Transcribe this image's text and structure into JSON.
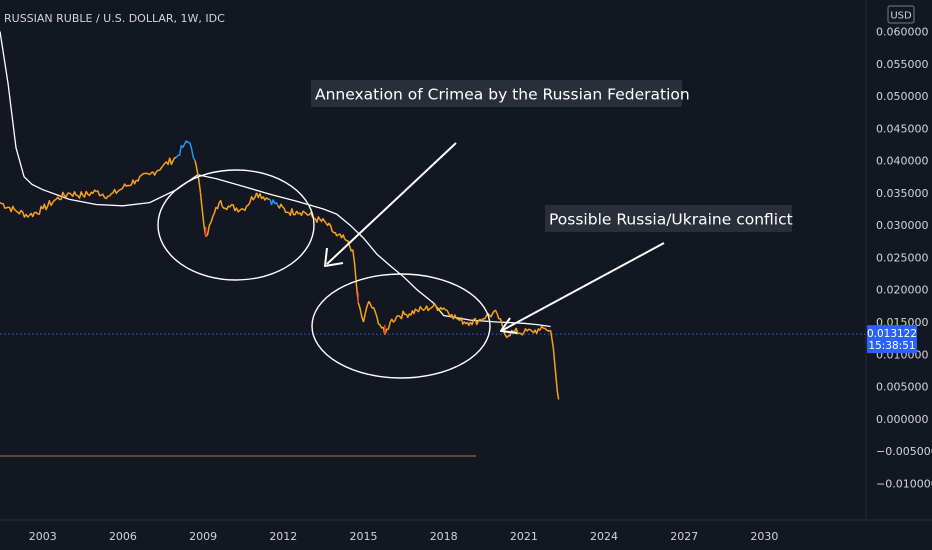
{
  "header": {
    "title": "RUSSIAN RUBLE / U.S. DOLLAR, 1W, IDC",
    "currency": "USD"
  },
  "price_badge": {
    "price": "0.013122",
    "countdown": "15:38:51"
  },
  "annotations": [
    "Annexation of Crimea by the Russian Federation",
    "Possible Russia/Ukraine conflict"
  ],
  "colors": {
    "background": "#131722",
    "up": "#f7a21b",
    "peak": "#2196f3",
    "down": "#e53935",
    "moving_average": "#ffffff",
    "last_price": "#2962ff"
  },
  "chart_data": {
    "type": "line",
    "title": "RUSSIAN RUBLE / U.S. DOLLAR, 1W, IDC",
    "xlabel": "",
    "ylabel": "",
    "xlim": [
      2001.4,
      2033.8
    ],
    "ylim": [
      -0.0118,
      0.0607
    ],
    "x_ticks": [
      "2003",
      "2006",
      "2009",
      "2012",
      "2015",
      "2018",
      "2021",
      "2024",
      "2027",
      "2030"
    ],
    "y_ticks": [
      "0.060000",
      "0.055000",
      "0.050000",
      "0.045000",
      "0.040000",
      "0.035000",
      "0.030000",
      "0.025000",
      "0.020000",
      "0.015000",
      "0.010000",
      "0.005000",
      "0.000000",
      "−0.005000",
      "−0.010000"
    ],
    "last_price": 0.013122,
    "grid": false,
    "series": [
      {
        "x": [
          2001.4,
          2002.0,
          2002.5,
          2003.0,
          2003.5,
          2004.0,
          2004.5,
          2005.0,
          2005.5,
          2006.0,
          2006.5,
          2007.0,
          2007.5,
          2008.0,
          2008.3,
          2008.5,
          2008.7,
          2008.9,
          2009.1,
          2009.3,
          2009.6,
          2010.0,
          2010.5,
          2011.0,
          2011.5,
          2011.8,
          2012.2,
          2012.5,
          2012.8,
          2013.2,
          2013.6,
          2014.0,
          2014.3,
          2014.6,
          2014.8,
          2015.0,
          2015.2,
          2015.5,
          2015.8,
          2016.0,
          2016.3,
          2016.6,
          2017.0,
          2017.3,
          2017.6,
          2018.0,
          2018.3,
          2018.6,
          2019.0,
          2019.3,
          2019.6,
          2020.0,
          2020.3,
          2020.6,
          2021.0,
          2021.3,
          2021.6,
          2021.8,
          2022.0,
          2022.1,
          2022.2,
          2022.3
        ],
        "y": [
          0.0335,
          0.0322,
          0.0315,
          0.0325,
          0.034,
          0.035,
          0.0346,
          0.0352,
          0.0345,
          0.0358,
          0.037,
          0.0378,
          0.0392,
          0.0405,
          0.0425,
          0.0428,
          0.04,
          0.035,
          0.0282,
          0.0305,
          0.0335,
          0.0328,
          0.0325,
          0.035,
          0.034,
          0.033,
          0.032,
          0.0322,
          0.032,
          0.031,
          0.0303,
          0.0283,
          0.0278,
          0.0262,
          0.018,
          0.015,
          0.0182,
          0.0158,
          0.013,
          0.015,
          0.016,
          0.0162,
          0.0168,
          0.017,
          0.0174,
          0.0172,
          0.0162,
          0.0152,
          0.015,
          0.0152,
          0.016,
          0.0163,
          0.013,
          0.0135,
          0.0134,
          0.0136,
          0.0137,
          0.014,
          0.0137,
          0.011,
          0.0065,
          0.003
        ]
      },
      {
        "x": [
          2001.4,
          2001.7,
          2002.0,
          2002.3,
          2002.6,
          2003.0,
          2004.0,
          2005.0,
          2006.0,
          2007.0,
          2008.0,
          2008.8,
          2009.5,
          2010.5,
          2011.5,
          2012.5,
          2013.5,
          2014.0,
          2014.5,
          2015.0,
          2015.5,
          2016.0,
          2016.5,
          2017.0,
          2017.6,
          2018.0,
          2019.0,
          2020.0,
          2021.0,
          2021.5,
          2022.0
        ],
        "y": [
          0.06,
          0.052,
          0.042,
          0.0375,
          0.0363,
          0.0355,
          0.034,
          0.0332,
          0.033,
          0.0335,
          0.0355,
          0.0378,
          0.0372,
          0.036,
          0.0348,
          0.0337,
          0.0325,
          0.0317,
          0.03,
          0.028,
          0.0255,
          0.0237,
          0.022,
          0.02,
          0.018,
          0.016,
          0.0153,
          0.015,
          0.0148,
          0.0146,
          0.0143
        ]
      }
    ],
    "volume_baseline": 0.0
  }
}
